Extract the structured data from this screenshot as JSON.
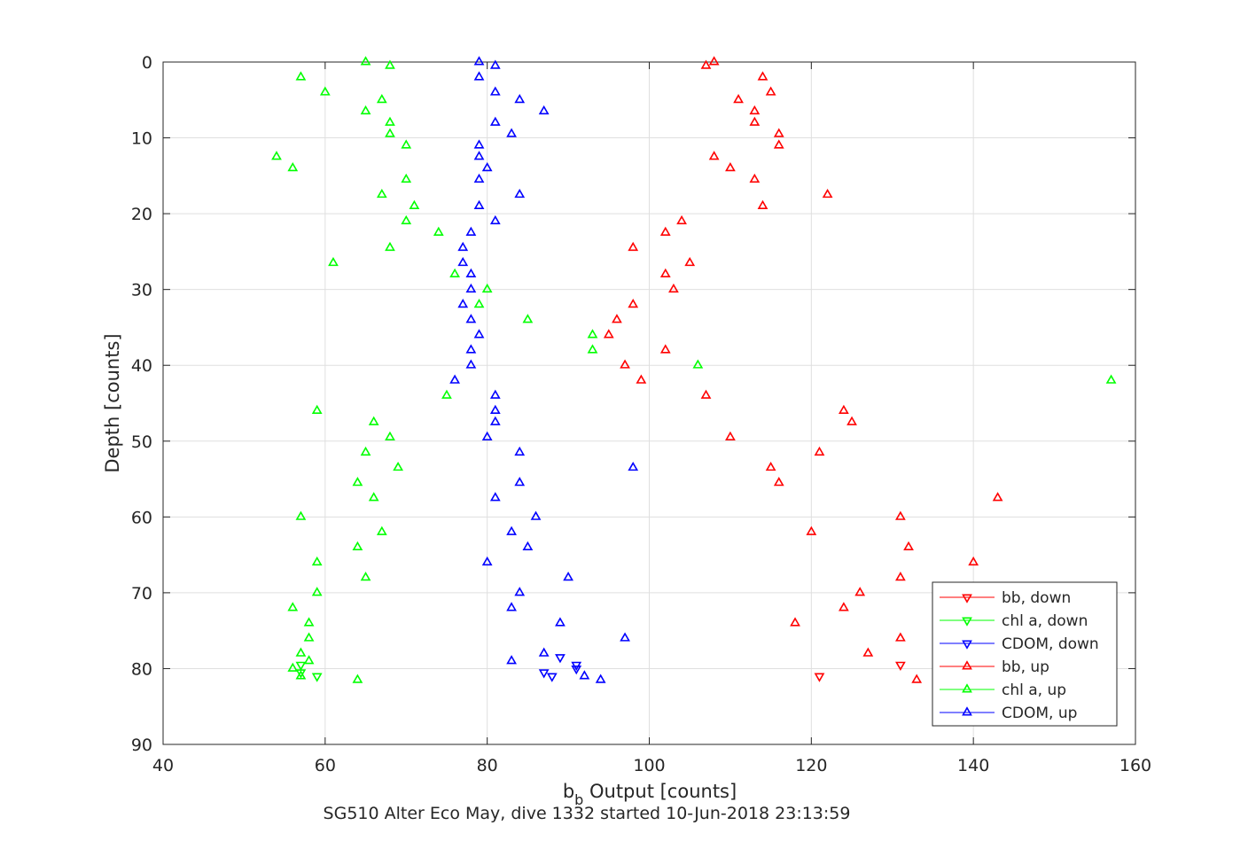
{
  "chart_data": {
    "type": "scatter",
    "xlabel_main": "b",
    "xlabel_sub": "b",
    "xlabel_rest": " Output [counts]",
    "ylabel": "Depth [counts]",
    "caption": "SG510 Alter Eco May, dive 1332 started 10-Jun-2018 23:13:59",
    "xlim": [
      40,
      160
    ],
    "ylim": [
      0,
      90
    ],
    "y_reversed": true,
    "grid": true,
    "xticks": [
      "40",
      "60",
      "80",
      "100",
      "120",
      "140",
      "160"
    ],
    "yticks": [
      "0",
      "10",
      "20",
      "30",
      "40",
      "50",
      "60",
      "70",
      "80",
      "90"
    ],
    "legend_position": "bottom-right",
    "colors": {
      "bb": "#ff0000",
      "chl": "#00ff00",
      "cdom": "#0000ff",
      "axis": "#262626",
      "grid": "#dfdfdf"
    },
    "series": [
      {
        "name": "bb, down",
        "color": "#ff0000",
        "marker": "triangle-down",
        "points": [
          [
            121,
            81.0
          ],
          [
            131,
            79.5
          ]
        ]
      },
      {
        "name": "chl a, down",
        "color": "#00ff00",
        "marker": "triangle-down",
        "points": [
          [
            57,
            80.5
          ],
          [
            59,
            81.0
          ],
          [
            57,
            79.5
          ]
        ]
      },
      {
        "name": "CDOM, down",
        "color": "#0000ff",
        "marker": "triangle-down",
        "points": [
          [
            87,
            80.5
          ],
          [
            88,
            81.0
          ],
          [
            91,
            80.0
          ],
          [
            91,
            79.5
          ],
          [
            89,
            78.5
          ]
        ]
      },
      {
        "name": "bb, up",
        "color": "#ff0000",
        "marker": "triangle-up",
        "points": [
          [
            108,
            0.0
          ],
          [
            107,
            0.5
          ],
          [
            114,
            2.0
          ],
          [
            115,
            4.0
          ],
          [
            111,
            5.0
          ],
          [
            113,
            6.5
          ],
          [
            113,
            8.0
          ],
          [
            116,
            9.5
          ],
          [
            116,
            11.0
          ],
          [
            108,
            12.5
          ],
          [
            110,
            14.0
          ],
          [
            113,
            15.5
          ],
          [
            122,
            17.5
          ],
          [
            114,
            19.0
          ],
          [
            104,
            21.0
          ],
          [
            102,
            22.5
          ],
          [
            98,
            24.5
          ],
          [
            105,
            26.5
          ],
          [
            102,
            28.0
          ],
          [
            103,
            30.0
          ],
          [
            98,
            32.0
          ],
          [
            96,
            34.0
          ],
          [
            95,
            36.0
          ],
          [
            102,
            38.0
          ],
          [
            97,
            40.0
          ],
          [
            99,
            42.0
          ],
          [
            107,
            44.0
          ],
          [
            124,
            46.0
          ],
          [
            125,
            47.5
          ],
          [
            110,
            49.5
          ],
          [
            121,
            51.5
          ],
          [
            115,
            53.5
          ],
          [
            116,
            55.5
          ],
          [
            143,
            57.5
          ],
          [
            131,
            60.0
          ],
          [
            120,
            62.0
          ],
          [
            132,
            64.0
          ],
          [
            140,
            66.0
          ],
          [
            131,
            68.0
          ],
          [
            126,
            70.0
          ],
          [
            124,
            72.0
          ],
          [
            118,
            74.0
          ],
          [
            131,
            76.0
          ],
          [
            127,
            78.0
          ],
          [
            133,
            81.5
          ]
        ]
      },
      {
        "name": "chl a, up",
        "color": "#00ff00",
        "marker": "triangle-up",
        "points": [
          [
            65,
            0.0
          ],
          [
            68,
            0.5
          ],
          [
            57,
            2.0
          ],
          [
            60,
            4.0
          ],
          [
            67,
            5.0
          ],
          [
            65,
            6.5
          ],
          [
            68,
            8.0
          ],
          [
            68,
            9.5
          ],
          [
            70,
            11.0
          ],
          [
            54,
            12.5
          ],
          [
            56,
            14.0
          ],
          [
            70,
            15.5
          ],
          [
            67,
            17.5
          ],
          [
            71,
            19.0
          ],
          [
            70,
            21.0
          ],
          [
            74,
            22.5
          ],
          [
            68,
            24.5
          ],
          [
            61,
            26.5
          ],
          [
            76,
            28.0
          ],
          [
            80,
            30.0
          ],
          [
            79,
            32.0
          ],
          [
            85,
            34.0
          ],
          [
            93,
            36.0
          ],
          [
            93,
            38.0
          ],
          [
            106,
            40.0
          ],
          [
            157,
            42.0
          ],
          [
            75,
            44.0
          ],
          [
            59,
            46.0
          ],
          [
            66,
            47.5
          ],
          [
            68,
            49.5
          ],
          [
            65,
            51.5
          ],
          [
            69,
            53.5
          ],
          [
            64,
            55.5
          ],
          [
            66,
            57.5
          ],
          [
            57,
            60.0
          ],
          [
            67,
            62.0
          ],
          [
            64,
            64.0
          ],
          [
            59,
            66.0
          ],
          [
            65,
            68.0
          ],
          [
            59,
            70.0
          ],
          [
            56,
            72.0
          ],
          [
            58,
            74.0
          ],
          [
            58,
            76.0
          ],
          [
            57,
            78.0
          ],
          [
            58,
            79.0
          ],
          [
            56,
            80.0
          ],
          [
            57,
            81.0
          ],
          [
            64,
            81.5
          ]
        ]
      },
      {
        "name": "CDOM, up",
        "color": "#0000ff",
        "marker": "triangle-up",
        "points": [
          [
            79,
            0.0
          ],
          [
            81,
            0.5
          ],
          [
            79,
            2.0
          ],
          [
            81,
            4.0
          ],
          [
            84,
            5.0
          ],
          [
            87,
            6.5
          ],
          [
            81,
            8.0
          ],
          [
            83,
            9.5
          ],
          [
            79,
            11.0
          ],
          [
            79,
            12.5
          ],
          [
            80,
            14.0
          ],
          [
            79,
            15.5
          ],
          [
            84,
            17.5
          ],
          [
            79,
            19.0
          ],
          [
            81,
            21.0
          ],
          [
            78,
            22.5
          ],
          [
            77,
            24.5
          ],
          [
            77,
            26.5
          ],
          [
            78,
            28.0
          ],
          [
            78,
            30.0
          ],
          [
            77,
            32.0
          ],
          [
            78,
            34.0
          ],
          [
            79,
            36.0
          ],
          [
            78,
            38.0
          ],
          [
            78,
            40.0
          ],
          [
            76,
            42.0
          ],
          [
            81,
            44.0
          ],
          [
            81,
            46.0
          ],
          [
            81,
            47.5
          ],
          [
            80,
            49.5
          ],
          [
            84,
            51.5
          ],
          [
            98,
            53.5
          ],
          [
            84,
            55.5
          ],
          [
            81,
            57.5
          ],
          [
            86,
            60.0
          ],
          [
            83,
            62.0
          ],
          [
            85,
            64.0
          ],
          [
            80,
            66.0
          ],
          [
            90,
            68.0
          ],
          [
            84,
            70.0
          ],
          [
            83,
            72.0
          ],
          [
            89,
            74.0
          ],
          [
            97,
            76.0
          ],
          [
            87,
            78.0
          ],
          [
            83,
            79.0
          ],
          [
            92,
            81.0
          ],
          [
            94,
            81.5
          ]
        ]
      }
    ]
  }
}
